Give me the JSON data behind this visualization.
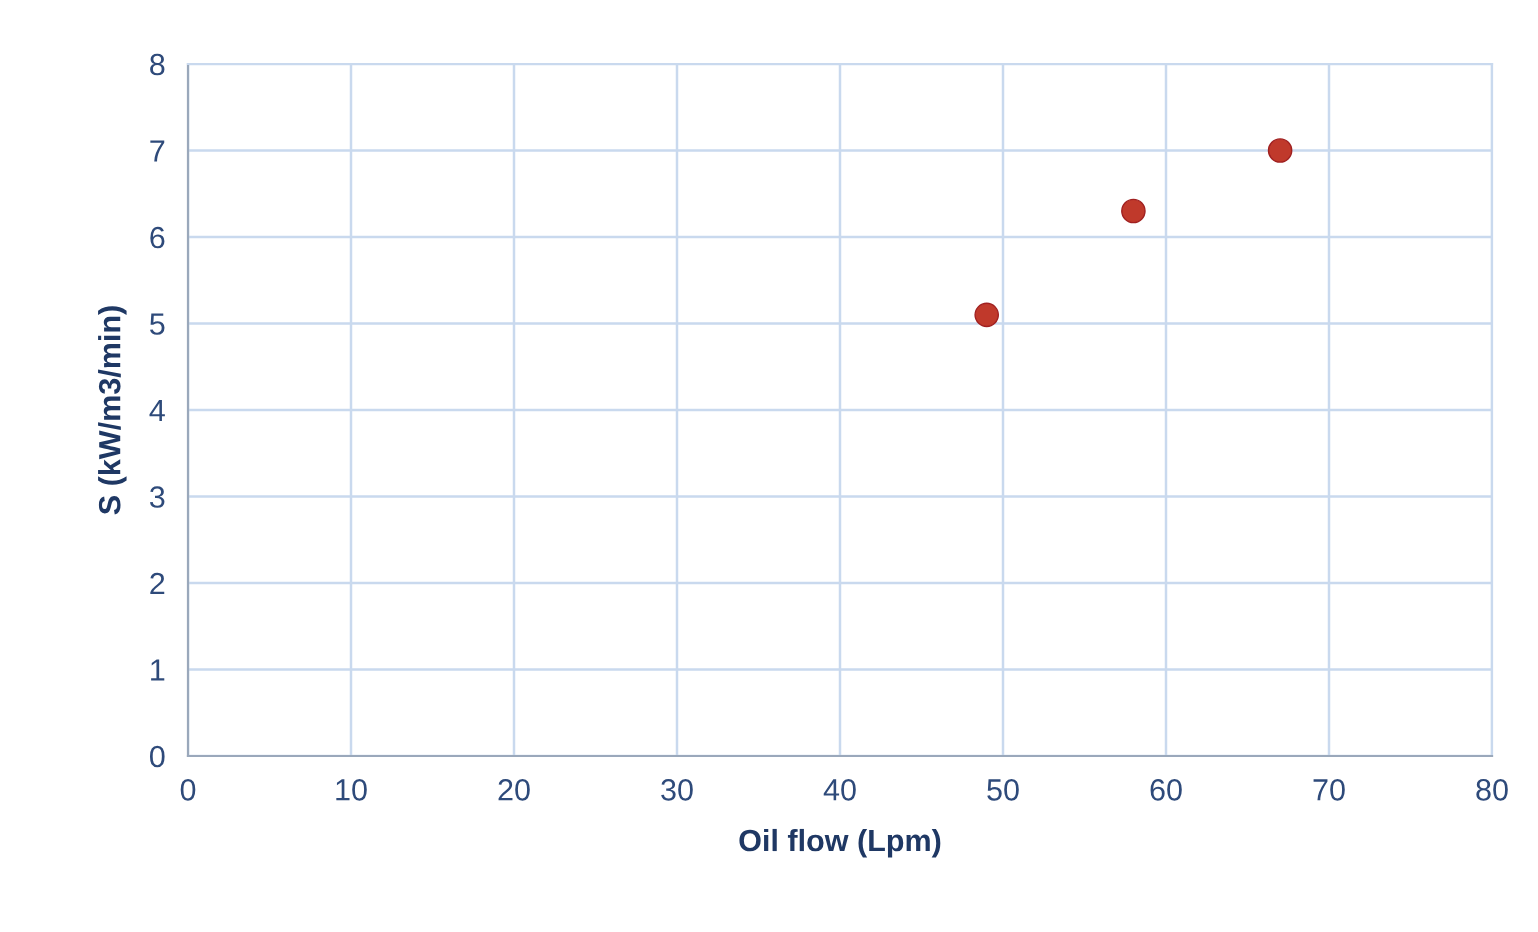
{
  "chart_data": {
    "type": "scatter",
    "xlabel": "Oil flow (Lpm)",
    "ylabel": "S (kW/m3/min)",
    "x": [
      49,
      58,
      67
    ],
    "series": [
      {
        "color": "#c0392b",
        "values": [
          5.1,
          6.3,
          7.0
        ]
      }
    ],
    "xlim": [
      0,
      80
    ],
    "xticks": [
      0,
      10,
      20,
      30,
      40,
      50,
      60,
      70,
      80
    ],
    "ylim": [
      0,
      8
    ],
    "yticks": [
      0,
      1,
      2,
      3,
      4,
      5,
      6,
      7,
      8
    ],
    "grid": true,
    "marker": "circle",
    "legend": false
  }
}
